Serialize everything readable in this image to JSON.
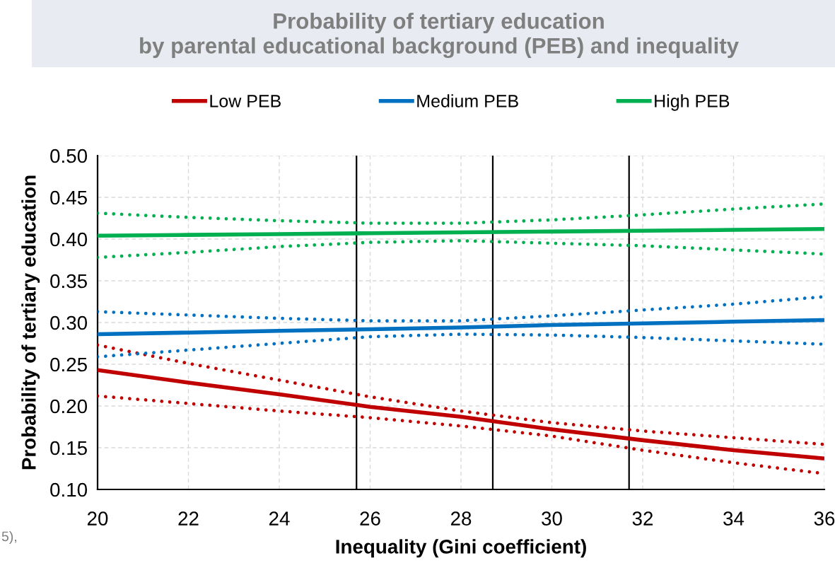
{
  "chart_data": {
    "type": "line",
    "title": "Probability of tertiary education\nby parental educational background (PEB) and inequality",
    "xlabel": "Inequality (Gini coefficient)",
    "ylabel": "Probability of tertiary education",
    "x": [
      20,
      22,
      24,
      26,
      28,
      30,
      32,
      34,
      36
    ],
    "series": [
      {
        "name": "Low PEB",
        "color": "#c00000",
        "line_style": "solid",
        "values": [
          0.243,
          0.228,
          0.214,
          0.199,
          0.187,
          0.172,
          0.159,
          0.147,
          0.137
        ]
      },
      {
        "name": "Medium PEB",
        "color": "#0070c0",
        "line_style": "solid",
        "values": [
          0.286,
          0.288,
          0.29,
          0.292,
          0.294,
          0.297,
          0.299,
          0.301,
          0.303
        ]
      },
      {
        "name": "High PEB",
        "color": "#00b050",
        "line_style": "solid",
        "values": [
          0.404,
          0.405,
          0.406,
          0.407,
          0.408,
          0.409,
          0.41,
          0.411,
          0.412
        ]
      },
      {
        "color": "#c00000",
        "line_style": "dotted",
        "values": [
          0.273,
          0.251,
          0.231,
          0.211,
          0.194,
          0.18,
          0.17,
          0.162,
          0.154
        ]
      },
      {
        "color": "#c00000",
        "line_style": "dotted",
        "values": [
          0.212,
          0.203,
          0.194,
          0.186,
          0.176,
          0.164,
          0.147,
          0.132,
          0.119
        ]
      },
      {
        "color": "#0070c0",
        "line_style": "dotted",
        "values": [
          0.313,
          0.309,
          0.305,
          0.302,
          0.302,
          0.308,
          0.315,
          0.322,
          0.331
        ]
      },
      {
        "color": "#0070c0",
        "line_style": "dotted",
        "values": [
          0.259,
          0.267,
          0.275,
          0.283,
          0.286,
          0.285,
          0.282,
          0.278,
          0.274
        ]
      },
      {
        "color": "#00b050",
        "line_style": "dotted",
        "values": [
          0.431,
          0.426,
          0.422,
          0.419,
          0.419,
          0.423,
          0.429,
          0.436,
          0.442
        ]
      },
      {
        "color": "#00b050",
        "line_style": "dotted",
        "values": [
          0.378,
          0.384,
          0.391,
          0.396,
          0.398,
          0.395,
          0.392,
          0.387,
          0.382
        ]
      }
    ],
    "xlim": [
      20,
      36
    ],
    "xticks": [
      20,
      22,
      24,
      26,
      28,
      30,
      32,
      34,
      36
    ],
    "ylim": [
      0.1,
      0.5
    ],
    "yticks": [
      {
        "value": 0.1,
        "label": "0.10"
      },
      0.15,
      {
        "value": 0.2,
        "label": "0.20"
      },
      0.25,
      {
        "value": 0.3,
        "label": "0.30"
      },
      0.35,
      {
        "value": 0.4,
        "label": "0.40"
      },
      0.45,
      {
        "value": 0.5,
        "label": "0.50"
      }
    ],
    "ref_lines": [
      {
        "axis": "x",
        "value": 25.7,
        "color": "#000000"
      },
      {
        "axis": "x",
        "value": 28.7,
        "color": "#000000"
      },
      {
        "axis": "x",
        "value": 31.7,
        "color": "#000000"
      }
    ],
    "grid": true,
    "legend": "top",
    "annotations": [
      "5),"
    ]
  }
}
